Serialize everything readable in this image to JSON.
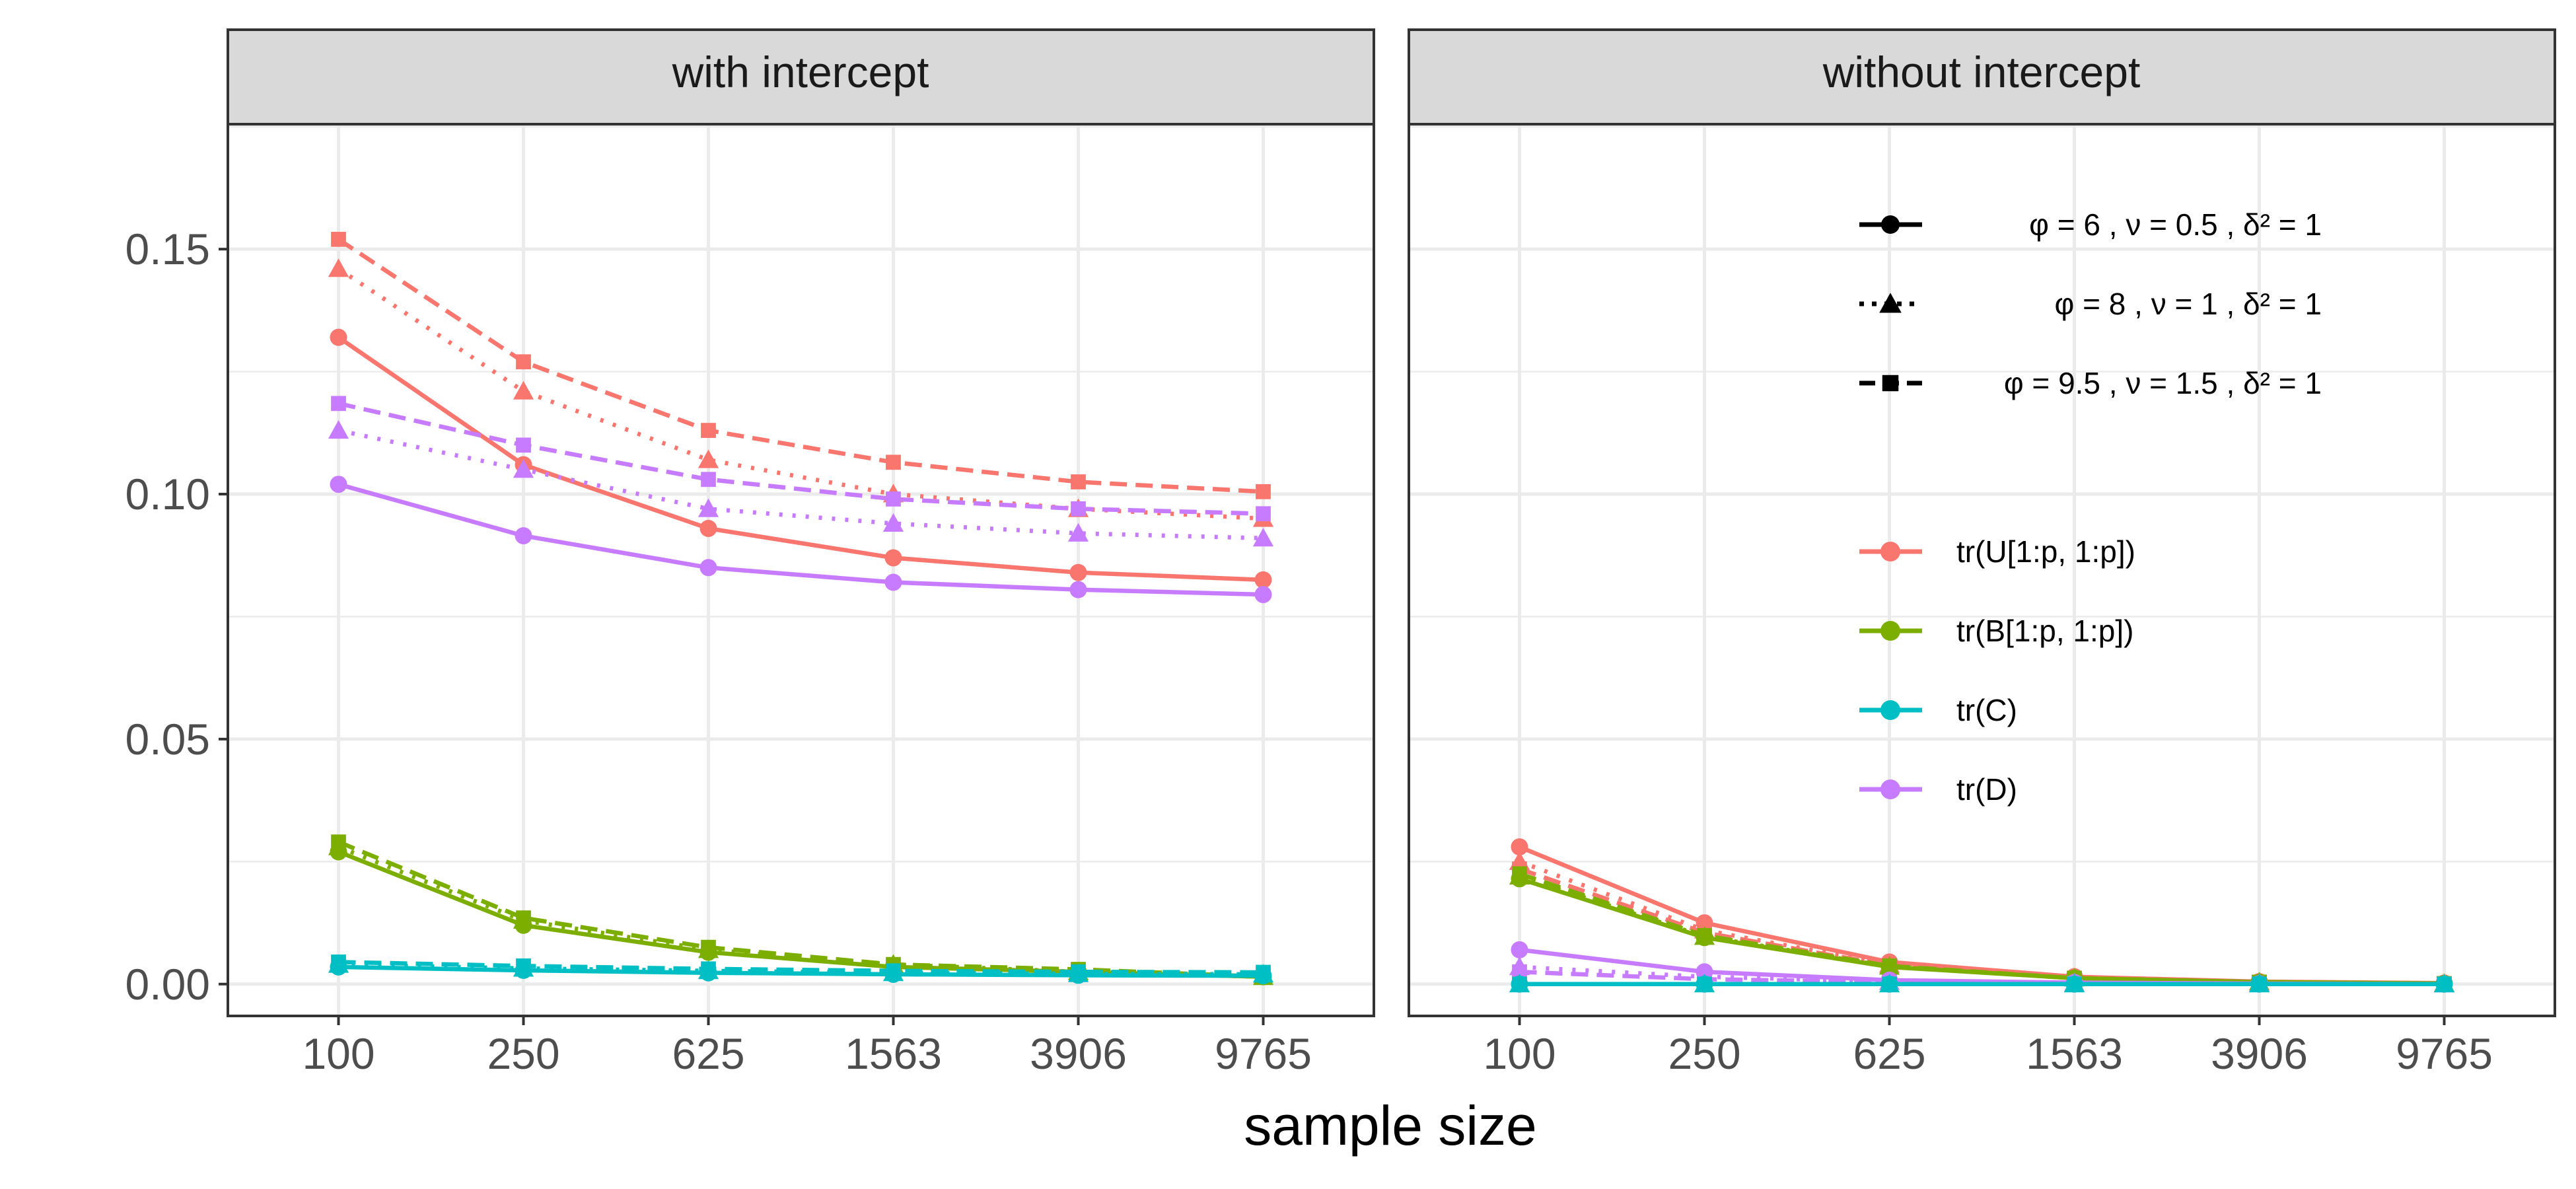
{
  "chart_data": {
    "type": "line",
    "xlabel": "sample size",
    "ylabel": "",
    "categories": [
      "100",
      "250",
      "625",
      "1563",
      "3906",
      "9765"
    ],
    "ylim": [
      -0.0065,
      0.1755
    ],
    "yticks": [
      0.0,
      0.05,
      0.1,
      0.15
    ],
    "ytick_labels": [
      "0.00",
      "0.05",
      "0.10",
      "0.15"
    ],
    "colors": {
      "tr_U": "#F8766D",
      "tr_B": "#7CAE00",
      "tr_C": "#00BFC4",
      "tr_D": "#C77CFF",
      "strip_bg": "#D9D9D9",
      "grid_major": "#EBEBEB",
      "border": "#333333"
    },
    "legend": {
      "placement": "top-right inside 'without intercept' panel",
      "settings": [
        {
          "key": "s1",
          "dash": "solid",
          "shape": "circle",
          "label": "φ = 6 , ν = 0.5 , δ² = 1"
        },
        {
          "key": "s2",
          "dash": "dotted",
          "shape": "triangle",
          "label": "φ = 8 , ν = 1 , δ² = 1"
        },
        {
          "key": "s3",
          "dash": "dashed",
          "shape": "square",
          "label": "φ = 9.5 , ν = 1.5 , δ² = 1"
        }
      ],
      "quantities": [
        {
          "key": "tr_U",
          "label": "tr(U[1:p, 1:p])"
        },
        {
          "key": "tr_B",
          "label": "tr(B[1:p, 1:p])"
        },
        {
          "key": "tr_C",
          "label": "tr(C)"
        },
        {
          "key": "tr_D",
          "label": "tr(D)"
        }
      ]
    },
    "panels": [
      {
        "title": "with intercept",
        "series": [
          {
            "quantity": "tr_U",
            "setting": "s1",
            "values": [
              0.132,
              0.106,
              0.093,
              0.087,
              0.084,
              0.0825
            ]
          },
          {
            "quantity": "tr_U",
            "setting": "s2",
            "values": [
              0.146,
              0.121,
              0.107,
              0.1,
              0.097,
              0.095
            ]
          },
          {
            "quantity": "tr_U",
            "setting": "s3",
            "values": [
              0.152,
              0.127,
              0.113,
              0.1065,
              0.1025,
              0.1005
            ]
          },
          {
            "quantity": "tr_D",
            "setting": "s1",
            "values": [
              0.102,
              0.0915,
              0.085,
              0.082,
              0.0805,
              0.0795
            ]
          },
          {
            "quantity": "tr_D",
            "setting": "s2",
            "values": [
              0.113,
              0.105,
              0.097,
              0.094,
              0.092,
              0.091
            ]
          },
          {
            "quantity": "tr_D",
            "setting": "s3",
            "values": [
              0.1185,
              0.11,
              0.103,
              0.099,
              0.097,
              0.096
            ]
          },
          {
            "quantity": "tr_B",
            "setting": "s1",
            "values": [
              0.027,
              0.012,
              0.0065,
              0.0035,
              0.0025,
              0.0015
            ]
          },
          {
            "quantity": "tr_B",
            "setting": "s2",
            "values": [
              0.028,
              0.013,
              0.007,
              0.004,
              0.0025,
              0.0015
            ]
          },
          {
            "quantity": "tr_B",
            "setting": "s3",
            "values": [
              0.029,
              0.0135,
              0.0075,
              0.004,
              0.003,
              0.0015
            ]
          },
          {
            "quantity": "tr_C",
            "setting": "s1",
            "values": [
              0.0035,
              0.0028,
              0.0023,
              0.002,
              0.0018,
              0.0017
            ]
          },
          {
            "quantity": "tr_C",
            "setting": "s2",
            "values": [
              0.004,
              0.0032,
              0.0027,
              0.0023,
              0.0021,
              0.002
            ]
          },
          {
            "quantity": "tr_C",
            "setting": "s3",
            "values": [
              0.0045,
              0.0037,
              0.0031,
              0.0027,
              0.0025,
              0.0024
            ]
          }
        ]
      },
      {
        "title": "without intercept",
        "series": [
          {
            "quantity": "tr_U",
            "setting": "s1",
            "values": [
              0.028,
              0.0125,
              0.0045,
              0.0015,
              0.0005,
              0.0002
            ]
          },
          {
            "quantity": "tr_U",
            "setting": "s2",
            "values": [
              0.025,
              0.011,
              0.004,
              0.0013,
              0.0004,
              0.0001
            ]
          },
          {
            "quantity": "tr_U",
            "setting": "s3",
            "values": [
              0.0235,
              0.0105,
              0.0038,
              0.0012,
              0.0004,
              0.0001
            ]
          },
          {
            "quantity": "tr_B",
            "setting": "s1",
            "values": [
              0.0215,
              0.0095,
              0.0035,
              0.0012,
              0.0004,
              0.0001
            ]
          },
          {
            "quantity": "tr_B",
            "setting": "s2",
            "values": [
              0.022,
              0.0097,
              0.0036,
              0.0012,
              0.0004,
              0.0001
            ]
          },
          {
            "quantity": "tr_B",
            "setting": "s3",
            "values": [
              0.0225,
              0.0099,
              0.0037,
              0.0012,
              0.0004,
              0.0001
            ]
          },
          {
            "quantity": "tr_D",
            "setting": "s1",
            "values": [
              0.007,
              0.0025,
              0.0008,
              0.0003,
              0.0001,
              0.0
            ]
          },
          {
            "quantity": "tr_D",
            "setting": "s2",
            "values": [
              0.0035,
              0.0015,
              0.0005,
              0.0002,
              0.0001,
              0.0
            ]
          },
          {
            "quantity": "tr_D",
            "setting": "s3",
            "values": [
              0.0025,
              0.001,
              0.0004,
              0.0001,
              0.0,
              0.0
            ]
          },
          {
            "quantity": "tr_C",
            "setting": "s1",
            "values": [
              0.0,
              0.0,
              0.0,
              0.0,
              0.0,
              0.0
            ]
          },
          {
            "quantity": "tr_C",
            "setting": "s2",
            "values": [
              0.0,
              0.0,
              0.0,
              0.0,
              0.0,
              0.0
            ]
          },
          {
            "quantity": "tr_C",
            "setting": "s3",
            "values": [
              0.0,
              0.0,
              0.0,
              0.0,
              0.0,
              0.0
            ]
          }
        ]
      }
    ]
  }
}
